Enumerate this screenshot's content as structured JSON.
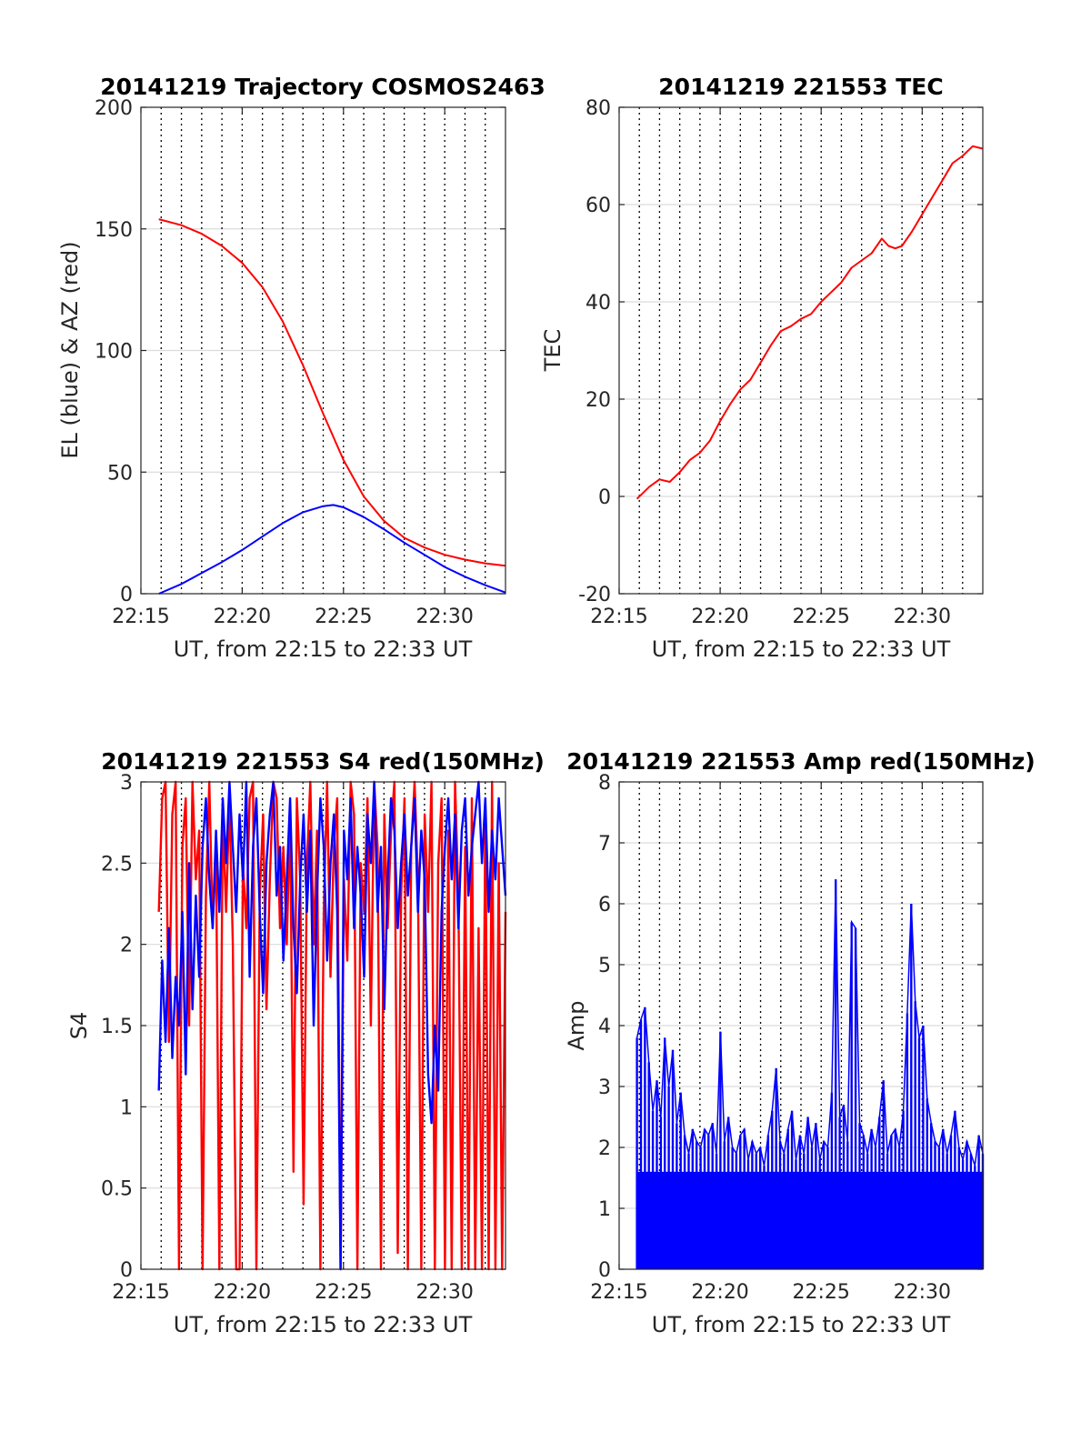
{
  "colors": {
    "red": "#ff0000",
    "blue": "#0000ff",
    "axis": "#262626",
    "grid": "#dcdcdc"
  },
  "chart_data": [
    {
      "type": "line",
      "title": "20141219 Trajectory COSMOS2463",
      "xlabel": "UT, from 22:15 to 22:33 UT",
      "ylabel": "EL (blue) & AZ (red)",
      "xlim": [
        "22:15",
        "22:33"
      ],
      "xticks": [
        "22:15",
        "22:20",
        "22:25",
        "22:30"
      ],
      "ylim": [
        0,
        200
      ],
      "yticks": [
        0,
        50,
        100,
        150,
        200
      ],
      "grid": "horizontal solid light gray, vertical dotted black every 1 min",
      "series": [
        {
          "color": "red",
          "x": [
            "22:15:53",
            "22:17",
            "22:18",
            "22:19",
            "22:20",
            "22:21",
            "22:22",
            "22:23",
            "22:24",
            "22:25",
            "22:26",
            "22:27",
            "22:28",
            "22:29",
            "22:30",
            "22:31",
            "22:32",
            "22:33"
          ],
          "values": [
            154,
            151.5,
            148,
            143,
            136,
            126,
            112,
            94,
            74,
            55,
            40,
            30,
            23,
            19,
            16,
            14,
            12.5,
            11.5
          ]
        },
        {
          "color": "blue",
          "x": [
            "22:15:53",
            "22:17",
            "22:18",
            "22:19",
            "22:20",
            "22:21",
            "22:22",
            "22:23",
            "22:24",
            "22:24:30",
            "22:25",
            "22:26",
            "22:27",
            "22:28",
            "22:29",
            "22:30",
            "22:31",
            "22:32",
            "22:33"
          ],
          "values": [
            0,
            4,
            8.5,
            13,
            18,
            23.5,
            29,
            33.5,
            36,
            36.5,
            35.5,
            31.5,
            26.5,
            21,
            16,
            11,
            7,
            3.5,
            0.5
          ]
        }
      ]
    },
    {
      "type": "line",
      "title": "20141219 221553 TEC",
      "xlabel": "UT, from 22:15 to 22:33 UT",
      "ylabel": "TEC",
      "xlim": [
        "22:15",
        "22:33"
      ],
      "xticks": [
        "22:15",
        "22:20",
        "22:25",
        "22:30"
      ],
      "ylim": [
        -20,
        80
      ],
      "yticks": [
        -20,
        0,
        20,
        40,
        60,
        80
      ],
      "grid": "horizontal solid light gray, vertical dotted black every 1 min",
      "series": [
        {
          "color": "red",
          "x": [
            "22:15:53",
            "22:16:30",
            "22:17",
            "22:17:30",
            "22:18",
            "22:18:30",
            "22:19",
            "22:19:30",
            "22:20",
            "22:20:30",
            "22:21",
            "22:21:30",
            "22:22",
            "22:22:30",
            "22:23",
            "22:23:30",
            "22:24",
            "22:24:30",
            "22:25",
            "22:25:30",
            "22:26",
            "22:26:30",
            "22:27",
            "22:27:30",
            "22:28",
            "22:28:20",
            "22:28:40",
            "22:29",
            "22:29:30",
            "22:30",
            "22:30:30",
            "22:31",
            "22:31:30",
            "22:32",
            "22:32:30",
            "22:33"
          ],
          "values": [
            -0.5,
            2,
            3.5,
            3,
            5,
            7.5,
            9,
            11.5,
            15.5,
            19,
            22,
            24,
            27.5,
            31,
            34,
            35,
            36.5,
            37.5,
            40,
            42,
            44,
            47,
            48.5,
            50,
            53,
            51.5,
            51,
            51.5,
            54.5,
            58,
            61.5,
            65,
            68.5,
            70,
            72,
            71.5
          ]
        }
      ]
    },
    {
      "type": "line",
      "title": "20141219 221553 S4 red(150MHz)",
      "xlabel": "UT, from 22:15 to 22:33 UT",
      "ylabel": "S4",
      "xlim": [
        "22:15",
        "22:33"
      ],
      "xticks": [
        "22:15",
        "22:20",
        "22:25",
        "22:30"
      ],
      "ylim": [
        0,
        3
      ],
      "yticks": [
        0,
        0.5,
        1,
        1.5,
        2,
        2.5,
        3
      ],
      "grid": "horizontal solid light gray, vertical dotted black every 1 min",
      "series": [
        {
          "color": "red",
          "x_start": "22:15:53",
          "x_end": "22:33",
          "values": [
            2.2,
            2.9,
            3,
            1.4,
            2.8,
            3,
            0,
            2.6,
            2.9,
            1.5,
            3,
            2.4,
            2.7,
            0,
            2.3,
            3,
            2.1,
            2.6,
            0,
            2.8,
            2.2,
            2.9,
            2.0,
            0,
            0,
            2.5,
            2.1,
            2.9,
            3,
            0,
            2.3,
            2.8,
            1.6,
            2.4,
            3,
            2.9,
            2.1,
            2.6,
            2.0,
            2.8,
            0.6,
            2.9,
            2.4,
            0.4,
            2.5,
            3,
            2.0,
            2.7,
            0,
            2.2,
            3,
            1.8,
            2.6,
            2.9,
            0,
            2.4,
            1.9,
            3,
            2.8,
            0,
            2.5,
            2.2,
            2.9,
            1.5,
            3,
            2.6,
            0,
            2.8,
            2.1,
            2.7,
            3,
            0.1,
            2.3,
            2.9,
            0,
            2.6,
            3,
            2.4,
            0,
            2.8,
            2.2,
            3,
            0,
            2.5,
            2.9,
            0,
            2.7,
            0,
            3,
            2.3,
            0,
            2.6,
            0,
            2.9,
            0,
            2.1,
            0,
            2.8,
            0,
            3,
            0,
            2.5,
            0,
            2.2
          ]
        },
        {
          "color": "blue",
          "x_start": "22:15:53",
          "x_end": "22:33",
          "values": [
            1.1,
            1.9,
            1.4,
            2.1,
            1.3,
            1.8,
            1.5,
            2.2,
            1.2,
            2.5,
            1.6,
            2.3,
            1.8,
            2.6,
            2.9,
            2.4,
            2.1,
            2.7,
            2.2,
            2.9,
            2.5,
            3,
            2.6,
            2.2,
            2.8,
            2.4,
            3,
            1.8,
            2.6,
            2.9,
            2.2,
            1.7,
            2.5,
            2.8,
            3,
            2.3,
            2.6,
            1.9,
            2.4,
            2.9,
            2.1,
            1.7,
            2.4,
            2.8,
            2.2,
            2.7,
            1.5,
            2.3,
            2.9,
            2.6,
            1.9,
            2.5,
            2.8,
            2.2,
            0,
            2.7,
            2.4,
            2.9,
            2.1,
            2.6,
            2.3,
            1.8,
            2.8,
            2.5,
            3,
            2.2,
            2.6,
            1.6,
            2.4,
            2.9,
            2.7,
            2.1,
            2.5,
            2.8,
            2.3,
            2.6,
            2.9,
            2.2,
            2.7,
            2.4,
            1.2,
            0.9,
            1.5,
            1.1,
            2.2,
            2.6,
            2.9,
            2.4,
            2.8,
            2.1,
            2.7,
            2.9,
            2.3,
            2.6,
            2.8,
            3,
            2.5,
            2.9,
            2.2,
            2.7,
            2.4,
            2.9,
            2.6,
            2.3
          ]
        }
      ]
    },
    {
      "type": "line",
      "title": "20141219 221553 Amp red(150MHz)",
      "xlabel": "UT, from 22:15 to 22:33 UT",
      "ylabel": "Amp",
      "xlim": [
        "22:15",
        "22:33"
      ],
      "xticks": [
        "22:15",
        "22:20",
        "22:25",
        "22:30"
      ],
      "ylim": [
        0,
        8
      ],
      "yticks": [
        0,
        1,
        2,
        3,
        4,
        5,
        6,
        7,
        8
      ],
      "grid": "horizontal solid light gray, vertical dotted black every 1 min",
      "series": [
        {
          "color": "blue",
          "x_start": "22:15:53",
          "x_end": "22:33",
          "values": [
            3.8,
            4.1,
            4.3,
            3.4,
            2.6,
            3.1,
            2.5,
            3.8,
            3.0,
            3.6,
            2.4,
            2.9,
            2.2,
            1.9,
            2.3,
            2.1,
            2.0,
            2.3,
            2.2,
            2.4,
            1.9,
            3.9,
            2.1,
            2.5,
            2.0,
            1.9,
            2.2,
            2.3,
            1.8,
            2.1,
            1.9,
            2.0,
            1.7,
            2.2,
            2.6,
            3.3,
            2.1,
            1.9,
            2.3,
            2.6,
            1.8,
            2.2,
            1.9,
            2.5,
            2.0,
            2.4,
            1.8,
            2.1,
            2.0,
            2.9,
            6.4,
            2.5,
            2.7,
            2.1,
            5.7,
            5.6,
            2.4,
            2.2,
            1.9,
            2.3,
            2.0,
            2.5,
            3.1,
            1.9,
            2.2,
            2.3,
            2.0,
            2.6,
            4.2,
            6.0,
            4.4,
            3.8,
            4.0,
            2.8,
            2.4,
            2.1,
            2.0,
            2.3,
            1.9,
            2.2,
            2.6,
            2.0,
            1.8,
            2.1,
            1.9,
            1.7,
            2.2,
            1.9
          ]
        }
      ]
    }
  ]
}
